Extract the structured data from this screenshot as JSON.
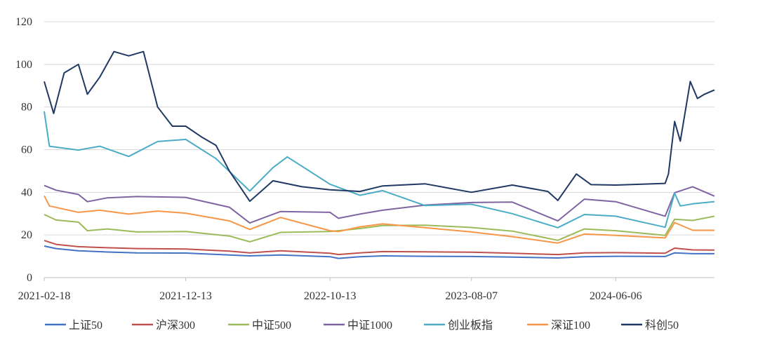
{
  "chart_data": {
    "type": "line",
    "title": "",
    "xlabel": "",
    "ylabel": "",
    "ylim": [
      0,
      120
    ],
    "yticks": [
      0,
      20,
      40,
      60,
      80,
      100,
      120
    ],
    "xticks": [
      "2021-02-18",
      "2021-12-13",
      "2022-10-13",
      "2023-08-07",
      "2024-06-06"
    ],
    "x_range": [
      "2021-02-18",
      "2024-12-31"
    ],
    "grid": "horizontal",
    "legend_position": "bottom",
    "series": [
      {
        "name": "上证50",
        "color": "#4472C4",
        "points": [
          [
            "2021-02-18",
            14.8
          ],
          [
            "2021-03-15",
            13.6
          ],
          [
            "2021-05-01",
            12.6
          ],
          [
            "2021-07-01",
            12.0
          ],
          [
            "2021-09-01",
            11.6
          ],
          [
            "2021-12-13",
            11.5
          ],
          [
            "2022-03-15",
            10.6
          ],
          [
            "2022-04-27",
            10.2
          ],
          [
            "2022-07-01",
            10.6
          ],
          [
            "2022-10-13",
            9.8
          ],
          [
            "2022-10-31",
            9.0
          ],
          [
            "2022-12-15",
            9.8
          ],
          [
            "2023-02-01",
            10.2
          ],
          [
            "2023-05-01",
            10.0
          ],
          [
            "2023-08-07",
            9.9
          ],
          [
            "2023-11-01",
            9.6
          ],
          [
            "2024-02-05",
            9.2
          ],
          [
            "2024-04-01",
            9.8
          ],
          [
            "2024-06-06",
            10.0
          ],
          [
            "2024-09-18",
            9.9
          ],
          [
            "2024-10-08",
            11.6
          ],
          [
            "2024-11-15",
            11.2
          ],
          [
            "2024-12-31",
            11.2
          ]
        ]
      },
      {
        "name": "沪深300",
        "color": "#C0504D",
        "points": [
          [
            "2021-02-18",
            17.4
          ],
          [
            "2021-03-15",
            15.6
          ],
          [
            "2021-05-01",
            14.5
          ],
          [
            "2021-07-01",
            14.0
          ],
          [
            "2021-09-01",
            13.6
          ],
          [
            "2021-12-13",
            13.4
          ],
          [
            "2022-03-15",
            12.4
          ],
          [
            "2022-04-27",
            11.6
          ],
          [
            "2022-07-01",
            12.6
          ],
          [
            "2022-10-13",
            11.4
          ],
          [
            "2022-10-31",
            10.8
          ],
          [
            "2022-12-15",
            11.6
          ],
          [
            "2023-02-01",
            12.2
          ],
          [
            "2023-05-01",
            12.1
          ],
          [
            "2023-08-07",
            11.9
          ],
          [
            "2023-11-01",
            11.4
          ],
          [
            "2024-02-05",
            10.8
          ],
          [
            "2024-04-01",
            11.6
          ],
          [
            "2024-06-06",
            11.7
          ],
          [
            "2024-09-18",
            11.4
          ],
          [
            "2024-10-08",
            13.8
          ],
          [
            "2024-11-15",
            13.0
          ],
          [
            "2024-12-31",
            12.9
          ]
        ]
      },
      {
        "name": "中证500",
        "color": "#9BBB59",
        "points": [
          [
            "2021-02-18",
            29.6
          ],
          [
            "2021-03-15",
            27.0
          ],
          [
            "2021-05-01",
            26.0
          ],
          [
            "2021-05-20",
            22.0
          ],
          [
            "2021-07-01",
            22.8
          ],
          [
            "2021-09-01",
            21.4
          ],
          [
            "2021-12-13",
            21.6
          ],
          [
            "2022-03-15",
            19.5
          ],
          [
            "2022-04-27",
            16.8
          ],
          [
            "2022-07-01",
            21.2
          ],
          [
            "2022-10-13",
            21.6
          ],
          [
            "2022-10-31",
            22.0
          ],
          [
            "2022-12-15",
            23.0
          ],
          [
            "2023-02-01",
            24.4
          ],
          [
            "2023-05-01",
            24.6
          ],
          [
            "2023-08-07",
            23.5
          ],
          [
            "2023-11-01",
            21.8
          ],
          [
            "2024-02-05",
            17.5
          ],
          [
            "2024-04-01",
            22.8
          ],
          [
            "2024-06-06",
            22.0
          ],
          [
            "2024-09-18",
            19.8
          ],
          [
            "2024-10-08",
            27.4
          ],
          [
            "2024-11-15",
            26.8
          ],
          [
            "2024-12-31",
            28.8
          ]
        ]
      },
      {
        "name": "中证1000",
        "color": "#8064A2",
        "points": [
          [
            "2021-02-18",
            43.2
          ],
          [
            "2021-03-15",
            41.0
          ],
          [
            "2021-05-01",
            39.0
          ],
          [
            "2021-05-20",
            35.6
          ],
          [
            "2021-07-01",
            37.4
          ],
          [
            "2021-09-01",
            38.0
          ],
          [
            "2021-12-13",
            37.6
          ],
          [
            "2022-03-15",
            33.0
          ],
          [
            "2022-04-27",
            25.6
          ],
          [
            "2022-07-01",
            31.0
          ],
          [
            "2022-10-13",
            30.6
          ],
          [
            "2022-10-31",
            27.8
          ],
          [
            "2022-12-15",
            29.8
          ],
          [
            "2023-02-01",
            31.6
          ],
          [
            "2023-05-01",
            34.0
          ],
          [
            "2023-08-07",
            35.2
          ],
          [
            "2023-11-01",
            35.4
          ],
          [
            "2024-02-05",
            26.6
          ],
          [
            "2024-04-01",
            36.8
          ],
          [
            "2024-06-06",
            35.6
          ],
          [
            "2024-09-18",
            28.8
          ],
          [
            "2024-10-08",
            39.8
          ],
          [
            "2024-11-15",
            42.6
          ],
          [
            "2024-12-31",
            38.2
          ]
        ]
      },
      {
        "name": "创业板指",
        "color": "#4BACC6",
        "points": [
          [
            "2021-02-18",
            78.0
          ],
          [
            "2021-03-01",
            61.6
          ],
          [
            "2021-05-01",
            59.8
          ],
          [
            "2021-06-15",
            61.6
          ],
          [
            "2021-08-15",
            56.8
          ],
          [
            "2021-10-15",
            63.8
          ],
          [
            "2021-12-13",
            64.8
          ],
          [
            "2022-02-15",
            55.8
          ],
          [
            "2022-04-27",
            40.6
          ],
          [
            "2022-06-15",
            51.6
          ],
          [
            "2022-07-15",
            56.6
          ],
          [
            "2022-10-13",
            43.8
          ],
          [
            "2022-12-15",
            38.6
          ],
          [
            "2023-02-01",
            40.8
          ],
          [
            "2023-05-01",
            33.8
          ],
          [
            "2023-08-07",
            34.4
          ],
          [
            "2023-11-01",
            30.0
          ],
          [
            "2024-02-05",
            23.4
          ],
          [
            "2024-04-01",
            29.6
          ],
          [
            "2024-06-06",
            28.8
          ],
          [
            "2024-09-18",
            23.6
          ],
          [
            "2024-10-08",
            39.6
          ],
          [
            "2024-10-20",
            33.6
          ],
          [
            "2024-11-15",
            34.6
          ],
          [
            "2024-12-31",
            35.6
          ]
        ]
      },
      {
        "name": "深证100",
        "color": "#F79646",
        "points": [
          [
            "2021-02-18",
            38.4
          ],
          [
            "2021-03-01",
            33.6
          ],
          [
            "2021-05-01",
            30.6
          ],
          [
            "2021-06-15",
            31.6
          ],
          [
            "2021-08-15",
            29.8
          ],
          [
            "2021-10-15",
            31.2
          ],
          [
            "2021-12-13",
            30.2
          ],
          [
            "2022-03-15",
            26.6
          ],
          [
            "2022-04-27",
            22.6
          ],
          [
            "2022-07-01",
            28.2
          ],
          [
            "2022-10-13",
            22.0
          ],
          [
            "2022-10-31",
            21.6
          ],
          [
            "2022-12-15",
            23.8
          ],
          [
            "2023-02-01",
            25.2
          ],
          [
            "2023-05-01",
            23.4
          ],
          [
            "2023-08-07",
            21.4
          ],
          [
            "2023-11-01",
            19.2
          ],
          [
            "2024-02-05",
            16.2
          ],
          [
            "2024-04-01",
            20.4
          ],
          [
            "2024-06-06",
            19.8
          ],
          [
            "2024-09-18",
            18.6
          ],
          [
            "2024-10-08",
            25.8
          ],
          [
            "2024-11-15",
            22.2
          ],
          [
            "2024-12-31",
            22.2
          ]
        ]
      },
      {
        "name": "科创50",
        "color": "#1F3864",
        "points": [
          [
            "2021-02-18",
            92.0
          ],
          [
            "2021-03-10",
            77.0
          ],
          [
            "2021-04-01",
            96.0
          ],
          [
            "2021-05-01",
            100.0
          ],
          [
            "2021-05-20",
            86.0
          ],
          [
            "2021-06-15",
            94.0
          ],
          [
            "2021-07-15",
            106.0
          ],
          [
            "2021-08-15",
            104.0
          ],
          [
            "2021-09-15",
            106.0
          ],
          [
            "2021-10-15",
            80.0
          ],
          [
            "2021-11-15",
            71.0
          ],
          [
            "2021-12-13",
            71.0
          ],
          [
            "2022-01-15",
            66.0
          ],
          [
            "2022-02-15",
            62.0
          ],
          [
            "2022-03-15",
            50.0
          ],
          [
            "2022-04-27",
            35.8
          ],
          [
            "2022-06-15",
            45.4
          ],
          [
            "2022-08-15",
            42.6
          ],
          [
            "2022-10-13",
            41.2
          ],
          [
            "2022-12-15",
            40.4
          ],
          [
            "2023-02-01",
            43.0
          ],
          [
            "2023-05-01",
            44.0
          ],
          [
            "2023-08-07",
            40.0
          ],
          [
            "2023-11-01",
            43.4
          ],
          [
            "2024-01-15",
            40.4
          ],
          [
            "2024-02-05",
            36.2
          ],
          [
            "2024-03-15",
            48.6
          ],
          [
            "2024-04-15",
            43.6
          ],
          [
            "2024-06-06",
            43.4
          ],
          [
            "2024-09-18",
            44.2
          ],
          [
            "2024-09-25",
            48.6
          ],
          [
            "2024-10-08",
            73.2
          ],
          [
            "2024-10-20",
            64.0
          ],
          [
            "2024-11-10",
            92.0
          ],
          [
            "2024-11-25",
            84.0
          ],
          [
            "2024-12-10",
            86.0
          ],
          [
            "2024-12-31",
            88.0
          ]
        ]
      }
    ]
  }
}
